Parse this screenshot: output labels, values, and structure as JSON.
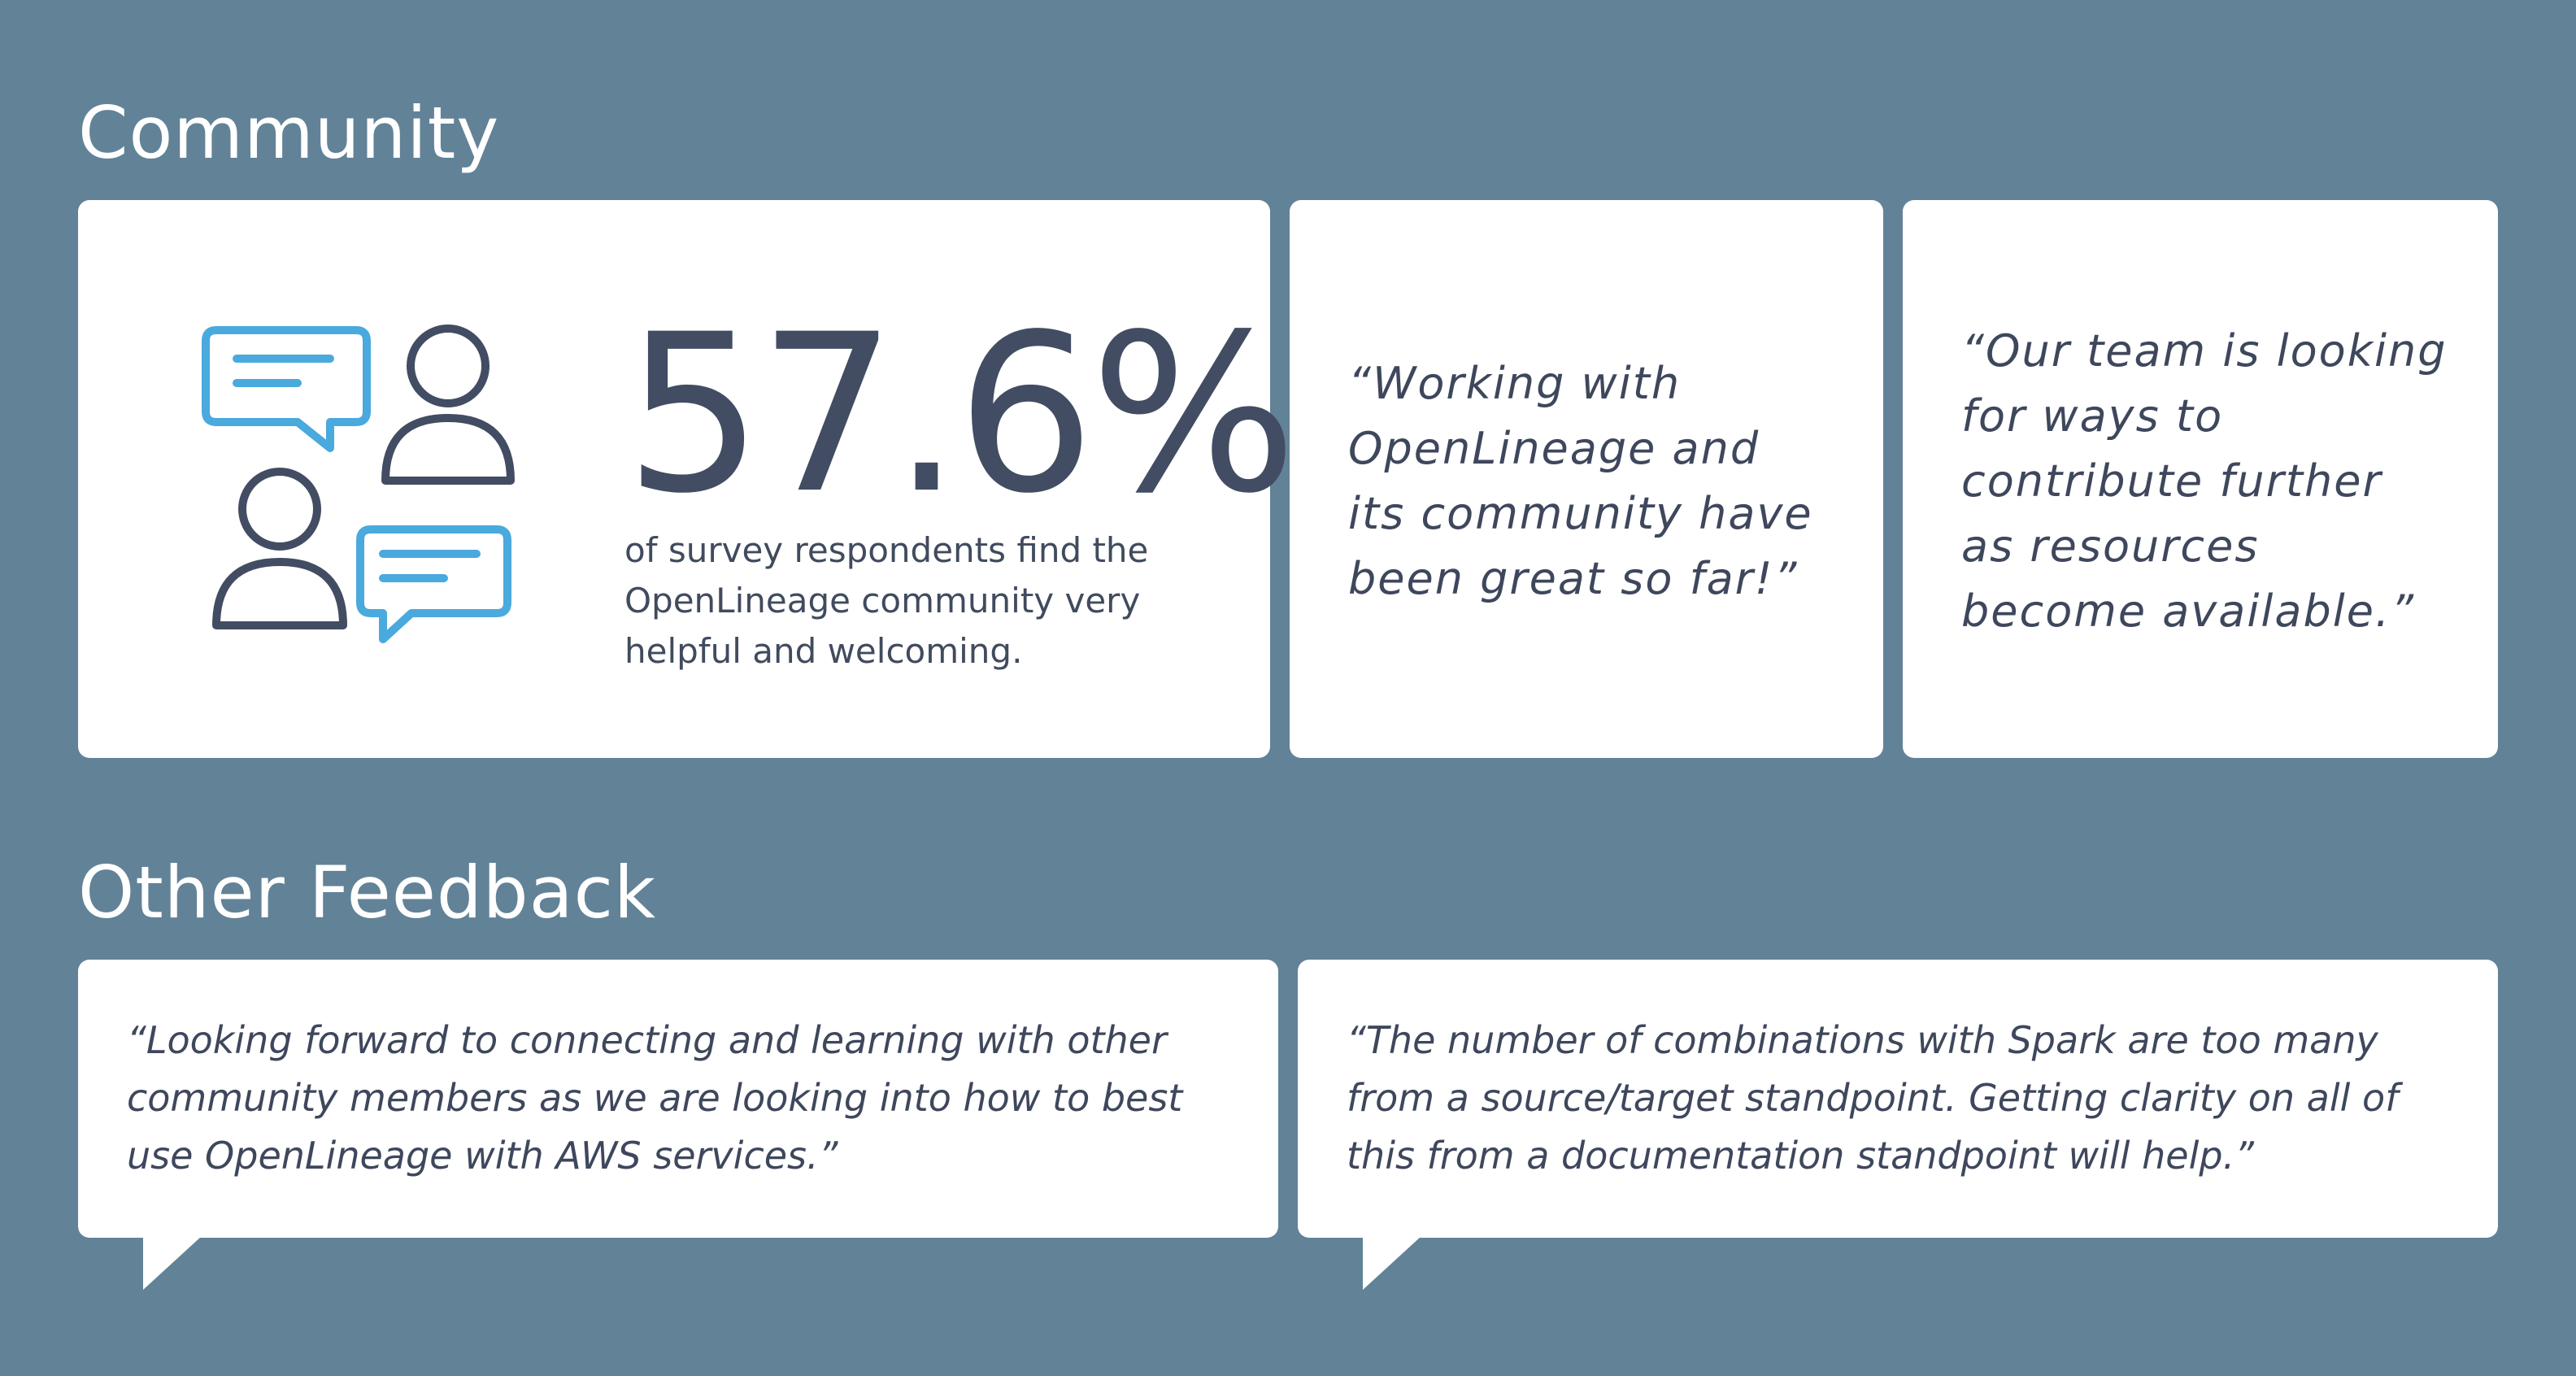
{
  "sections": {
    "community_title": "Community",
    "feedback_title": "Other Feedback"
  },
  "stat": {
    "value": "57.6%",
    "caption": "of survey respondents find the OpenLineage community very helpful and welcoming.",
    "icon": "community-chat-icon"
  },
  "community_quotes": [
    {
      "text": "“Working with\n OpenLineage and\n its community have\n been great so far!”"
    },
    {
      "text": "“Our team is looking\n for ways to\n contribute further\n as resources\n become available.”"
    }
  ],
  "feedback": [
    {
      "text": "“Looking forward to connecting and learning with other\n community members as we are looking into how to best\n use OpenLineage with AWS services.”"
    },
    {
      "text": "“The number of combinations with Spark are too many\n from a source/target standpoint. Getting clarity on all of\n this from a documentation standpoint will help.”"
    }
  ],
  "colors": {
    "background": "#628297",
    "card": "#ffffff",
    "dark_text": "#424d63",
    "accent_blue": "#4aa9dd"
  }
}
